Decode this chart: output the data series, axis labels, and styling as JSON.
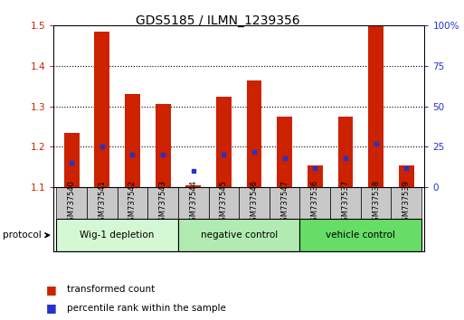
{
  "title": "GDS5185 / ILMN_1239356",
  "samples": [
    "GSM737540",
    "GSM737541",
    "GSM737542",
    "GSM737543",
    "GSM737544",
    "GSM737545",
    "GSM737546",
    "GSM737547",
    "GSM737536",
    "GSM737537",
    "GSM737538",
    "GSM737539"
  ],
  "bar_values": [
    1.235,
    1.485,
    1.33,
    1.305,
    1.105,
    1.325,
    1.365,
    1.275,
    1.155,
    1.275,
    1.5,
    1.155
  ],
  "blue_pct": [
    15,
    25,
    20,
    20,
    10,
    20,
    22,
    18,
    12,
    18,
    27,
    12
  ],
  "ylim_left": [
    1.1,
    1.5
  ],
  "ylim_right": [
    0,
    100
  ],
  "yticks_left": [
    1.1,
    1.2,
    1.3,
    1.4,
    1.5
  ],
  "yticks_right": [
    0,
    25,
    50,
    75,
    100
  ],
  "ytick_right_labels": [
    "0",
    "25",
    "50",
    "75",
    "100%"
  ],
  "groups": [
    {
      "label": "Wig-1 depletion",
      "start": 0,
      "end": 4,
      "color": "#d4f7d4"
    },
    {
      "label": "negative control",
      "start": 4,
      "end": 8,
      "color": "#b2ebb2"
    },
    {
      "label": "vehicle control",
      "start": 8,
      "end": 12,
      "color": "#66dd66"
    }
  ],
  "bar_color": "#cc2200",
  "blue_color": "#2233cc",
  "bar_bottom": 1.1,
  "bar_width": 0.5,
  "sample_box_color": "#c8c8c8",
  "grid_color": "#000000",
  "left_tick_color": "#cc2200",
  "right_tick_color": "#2233cc",
  "protocol_label": "protocol",
  "legend_red": "transformed count",
  "legend_blue": "percentile rank within the sample"
}
